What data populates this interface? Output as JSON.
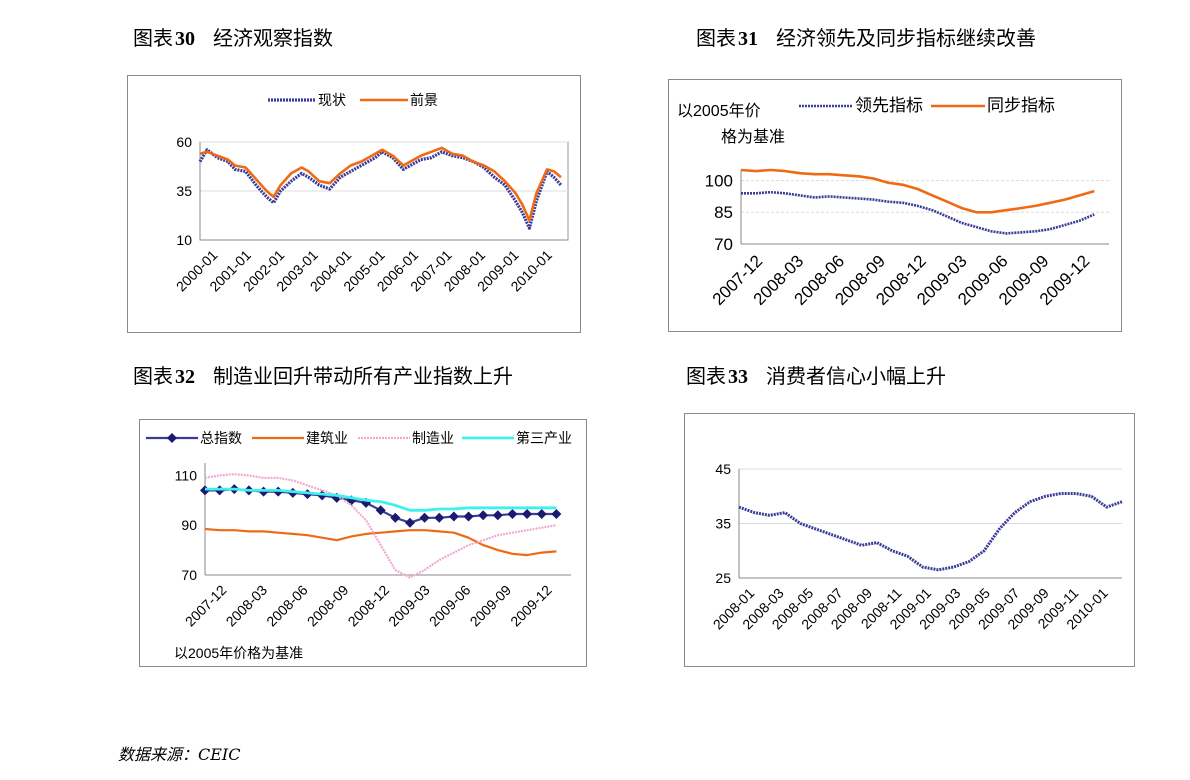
{
  "captions": [
    {
      "prefix": "图表",
      "num": "30",
      "text": "经济观察指数"
    },
    {
      "prefix": "图表",
      "num": "31",
      "text": "经济领先及同步指标继续改善"
    },
    {
      "prefix": "图表",
      "num": "32",
      "text": "制造业回升带动所有产业指数上升"
    },
    {
      "prefix": "图表",
      "num": "33",
      "text": "消费者信心小幅上升"
    }
  ],
  "source": "数据来源：CEIC",
  "colors": {
    "navy": "#3b3c9a",
    "orange": "#ef6a15",
    "pink": "#f3a8d2",
    "cyan": "#3ff0f0",
    "grid": "#dcdcdc",
    "frame": "#8a8a8a"
  },
  "chart_data": [
    {
      "type": "line",
      "title": "",
      "legend": [
        "现状",
        "前景"
      ],
      "legend_position": "top",
      "x_ticks": [
        "2000-01",
        "2001-01",
        "2002-01",
        "2003-01",
        "2004-01",
        "2005-01",
        "2006-01",
        "2007-01",
        "2008-01",
        "2009-01",
        "2010-01"
      ],
      "y_ticks": [
        10,
        35,
        60
      ],
      "ylim": [
        10,
        60
      ],
      "xlim": [
        2000.0,
        2010.5
      ],
      "grid": "horizontal",
      "series": [
        {
          "name": "现状",
          "x": [
            2000.0,
            2000.2,
            2000.5,
            2000.8,
            2001.0,
            2001.3,
            2001.6,
            2001.9,
            2002.1,
            2002.3,
            2002.6,
            2002.9,
            2003.1,
            2003.4,
            2003.7,
            2004.0,
            2004.3,
            2004.6,
            2005.0,
            2005.2,
            2005.5,
            2005.8,
            2006.0,
            2006.3,
            2006.6,
            2006.9,
            2007.2,
            2007.5,
            2007.8,
            2008.1,
            2008.4,
            2008.7,
            2009.0,
            2009.2,
            2009.4,
            2009.6,
            2009.9,
            2010.1,
            2010.3
          ],
          "values": [
            50,
            56,
            52,
            50,
            46,
            45,
            38,
            32,
            29,
            35,
            40,
            44,
            42,
            38,
            36,
            42,
            45,
            48,
            52,
            55,
            52,
            46,
            48,
            51,
            52,
            55,
            53,
            52,
            50,
            47,
            42,
            38,
            30,
            24,
            16,
            30,
            45,
            42,
            38
          ]
        },
        {
          "name": "前景",
          "x": [
            2000.0,
            2000.2,
            2000.5,
            2000.8,
            2001.0,
            2001.3,
            2001.6,
            2001.9,
            2002.1,
            2002.3,
            2002.6,
            2002.9,
            2003.1,
            2003.4,
            2003.7,
            2004.0,
            2004.3,
            2004.6,
            2005.0,
            2005.2,
            2005.5,
            2005.8,
            2006.0,
            2006.3,
            2006.6,
            2006.9,
            2007.2,
            2007.5,
            2007.8,
            2008.1,
            2008.4,
            2008.7,
            2009.0,
            2009.2,
            2009.4,
            2009.6,
            2009.9,
            2010.1,
            2010.3
          ],
          "values": [
            54,
            55,
            53,
            51,
            48,
            47,
            41,
            35,
            32,
            38,
            44,
            47,
            45,
            40,
            39,
            44,
            48,
            50,
            54,
            56,
            53,
            48,
            50,
            53,
            55,
            57,
            54,
            53,
            50,
            48,
            45,
            40,
            34,
            28,
            20,
            34,
            46,
            45,
            42
          ]
        }
      ]
    },
    {
      "type": "line",
      "title": "",
      "note": "以2005年价格为基准",
      "legend": [
        "领先指标",
        "同步指标"
      ],
      "legend_position": "top",
      "x_ticks": [
        "2007-12",
        "2008-03",
        "2008-06",
        "2008-09",
        "2008-12",
        "2009-03",
        "2009-06",
        "2009-09",
        "2009-12"
      ],
      "y_ticks": [
        70,
        85,
        100
      ],
      "ylim": [
        70,
        105
      ],
      "xlim": [
        0,
        25
      ],
      "grid": "horizontal",
      "series": [
        {
          "name": "领先指标",
          "x": [
            0,
            1,
            2,
            3,
            4,
            5,
            6,
            7,
            8,
            9,
            10,
            11,
            12,
            13,
            14,
            15,
            16,
            17,
            18,
            19,
            20,
            21,
            22,
            23,
            24
          ],
          "values": [
            94,
            94,
            94.5,
            94,
            93,
            92,
            92.5,
            92,
            91.5,
            91,
            90,
            89.5,
            88,
            86,
            83,
            80,
            78,
            76,
            75,
            75.5,
            76,
            77,
            79,
            81,
            84
          ]
        },
        {
          "name": "同步指标",
          "x": [
            0,
            1,
            2,
            3,
            4,
            5,
            6,
            7,
            8,
            9,
            10,
            11,
            12,
            13,
            14,
            15,
            16,
            17,
            18,
            19,
            20,
            21,
            22,
            23,
            24
          ],
          "values": [
            105,
            104.5,
            105,
            104.5,
            103.5,
            103,
            103,
            102.5,
            102,
            101,
            99,
            98,
            96,
            93,
            90,
            87,
            85,
            85,
            86,
            87,
            88,
            89.5,
            91,
            93,
            95
          ]
        }
      ]
    },
    {
      "type": "line",
      "title": "",
      "note": "以2005年价格为基准",
      "legend": [
        "总指数",
        "建筑业",
        "制造业",
        "第三产业"
      ],
      "legend_position": "top",
      "x_ticks": [
        "2007-12",
        "2008-03",
        "2008-06",
        "2008-09",
        "2008-12",
        "2009-03",
        "2009-06",
        "2009-09",
        "2009-12"
      ],
      "y_ticks": [
        70,
        90,
        110
      ],
      "ylim": [
        70,
        115
      ],
      "xlim": [
        0,
        25
      ],
      "grid": "none",
      "series": [
        {
          "name": "总指数",
          "x": [
            0,
            1,
            2,
            3,
            4,
            5,
            6,
            7,
            8,
            9,
            10,
            11,
            12,
            13,
            14,
            15,
            16,
            17,
            18,
            19,
            20,
            21,
            22,
            23,
            24
          ],
          "values": [
            104,
            104,
            104.5,
            104,
            103.5,
            103.5,
            103,
            102.5,
            102,
            101,
            100,
            99,
            96,
            93,
            91,
            93,
            93,
            93.5,
            93.5,
            94,
            94,
            94.5,
            94.5,
            94.5,
            94.5
          ]
        },
        {
          "name": "建筑业",
          "x": [
            0,
            1,
            2,
            3,
            4,
            5,
            6,
            7,
            8,
            9,
            10,
            11,
            12,
            13,
            14,
            15,
            16,
            17,
            18,
            19,
            20,
            21,
            22,
            23,
            24
          ],
          "values": [
            88.5,
            88,
            88,
            87.5,
            87.5,
            87,
            86.5,
            86,
            85,
            84,
            85.5,
            86.5,
            87,
            87.5,
            88,
            88,
            87.5,
            87,
            85,
            82,
            80,
            78.5,
            78,
            79,
            79.5
          ]
        },
        {
          "name": "制造业",
          "x": [
            0,
            1,
            2,
            3,
            4,
            5,
            6,
            7,
            8,
            9,
            10,
            11,
            12,
            13,
            14,
            15,
            16,
            17,
            18,
            19,
            20,
            21,
            22,
            23,
            24
          ],
          "values": [
            109,
            110,
            110.5,
            110,
            109,
            109,
            108,
            106,
            104,
            102,
            98,
            92,
            82,
            72,
            69,
            72,
            76,
            79,
            82,
            84,
            86,
            87,
            88,
            89,
            90
          ]
        },
        {
          "name": "第三产业",
          "x": [
            0,
            1,
            2,
            3,
            4,
            5,
            6,
            7,
            8,
            9,
            10,
            11,
            12,
            13,
            14,
            15,
            16,
            17,
            18,
            19,
            20,
            21,
            22,
            23,
            24
          ],
          "values": [
            104.5,
            104.5,
            104.5,
            104,
            104,
            104,
            103.5,
            103,
            102.5,
            102,
            101,
            100,
            99.5,
            98,
            96,
            96,
            96.5,
            96.5,
            97,
            97,
            97,
            97,
            97,
            97,
            97
          ]
        }
      ]
    },
    {
      "type": "line",
      "title": "",
      "x_ticks": [
        "2008-01",
        "2008-03",
        "2008-05",
        "2008-07",
        "2008-09",
        "2008-11",
        "2009-01",
        "2009-03",
        "2009-05",
        "2009-07",
        "2009-09",
        "2009-11",
        "2010-01"
      ],
      "y_ticks": [
        25,
        35,
        45
      ],
      "ylim": [
        25,
        45
      ],
      "xlim": [
        0,
        25
      ],
      "grid": "horizontal",
      "series": [
        {
          "name": "",
          "x": [
            0,
            1,
            2,
            3,
            4,
            5,
            6,
            7,
            8,
            9,
            10,
            11,
            12,
            13,
            14,
            15,
            16,
            17,
            18,
            19,
            20,
            21,
            22,
            23,
            24,
            25
          ],
          "values": [
            38,
            37,
            36.5,
            37,
            35,
            34,
            33,
            32,
            31,
            31.5,
            30,
            29,
            27,
            26.5,
            27,
            28,
            30,
            34,
            37,
            39,
            40,
            40.5,
            40.5,
            40,
            38,
            39
          ]
        }
      ]
    }
  ]
}
